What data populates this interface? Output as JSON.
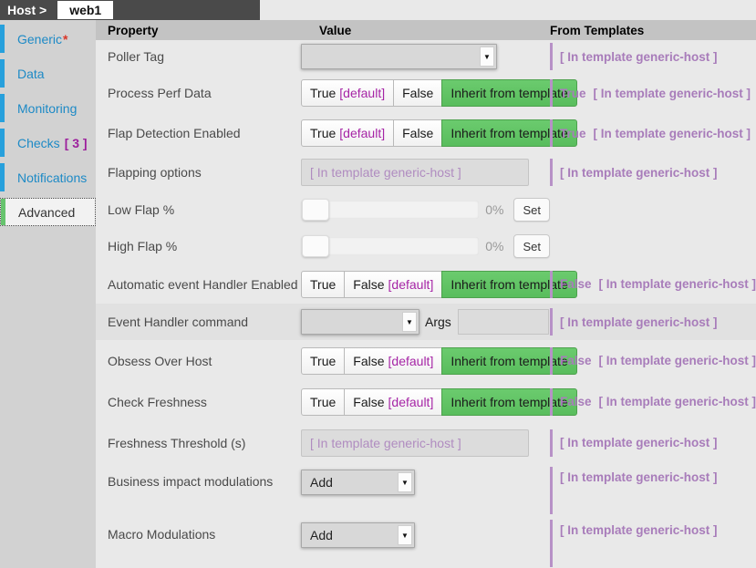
{
  "header": {
    "breadcrumb": "Host >",
    "host_name": "web1"
  },
  "sidebar": {
    "items": [
      {
        "label": "Generic",
        "required_marker": "*"
      },
      {
        "label": "Data"
      },
      {
        "label": "Monitoring"
      },
      {
        "label": "Checks",
        "count": "[ 3 ]"
      },
      {
        "label": "Notifications"
      },
      {
        "label": "Advanced"
      }
    ]
  },
  "icons": {
    "chevron_down": "▼"
  },
  "colors": {
    "inherit_green": "#62c462",
    "sidebar_blue": "#27a0dc",
    "template_purple": "#a87cba",
    "default_magenta": "#a625a6",
    "required_red": "#d9372a"
  },
  "table": {
    "headers": {
      "property": "Property",
      "value": "Value",
      "from_templates": "From Templates"
    },
    "rows": [
      {
        "property": "Poller Tag",
        "template_note": "[ In template generic-host ]"
      },
      {
        "property": "Process Perf Data",
        "btn_true": "True",
        "btn_true_suffix": "[default]",
        "btn_false": "False",
        "btn_inherit": "Inherit from template",
        "template_value": "True",
        "template_note": "[ In template generic-host ]"
      },
      {
        "property": "Flap Detection Enabled",
        "btn_true": "True",
        "btn_true_suffix": "[default]",
        "btn_false": "False",
        "btn_inherit": "Inherit from template",
        "template_value": "True",
        "template_note": "[ In template generic-host ]"
      },
      {
        "property": "Flapping options",
        "placeholder": "[ In template generic-host ]",
        "template_note": "[ In template generic-host ]"
      },
      {
        "property": "Low Flap %",
        "value_label": "0%",
        "set_label": "Set"
      },
      {
        "property": "High Flap %",
        "value_label": "0%",
        "set_label": "Set"
      },
      {
        "property": "Automatic event Handler Enabled",
        "btn_true": "True",
        "btn_false": "False",
        "btn_false_suffix": "[default]",
        "btn_inherit": "Inherit from template",
        "template_value": "False",
        "template_note": "[ In template generic-host ]"
      },
      {
        "property": "Event Handler command",
        "args_label": "Args",
        "template_note": "[ In template generic-host ]"
      },
      {
        "property": "Obsess Over Host",
        "btn_true": "True",
        "btn_false": "False",
        "btn_false_suffix": "[default]",
        "btn_inherit": "Inherit from template",
        "template_value": "False",
        "template_note": "[ In template generic-host ]"
      },
      {
        "property": "Check Freshness",
        "btn_true": "True",
        "btn_false": "False",
        "btn_false_suffix": "[default]",
        "btn_inherit": "Inherit from template",
        "template_value": "False",
        "template_note": "[ In template generic-host ]"
      },
      {
        "property": "Freshness Threshold (s)",
        "placeholder": "[ In template generic-host ]",
        "template_note": "[ In template generic-host ]"
      },
      {
        "property": "Business impact modulations",
        "select_value": "Add",
        "template_note": "[ In template generic-host ]"
      },
      {
        "property": "Macro Modulations",
        "select_value": "Add",
        "template_note": "[ In template generic-host ]"
      }
    ]
  }
}
